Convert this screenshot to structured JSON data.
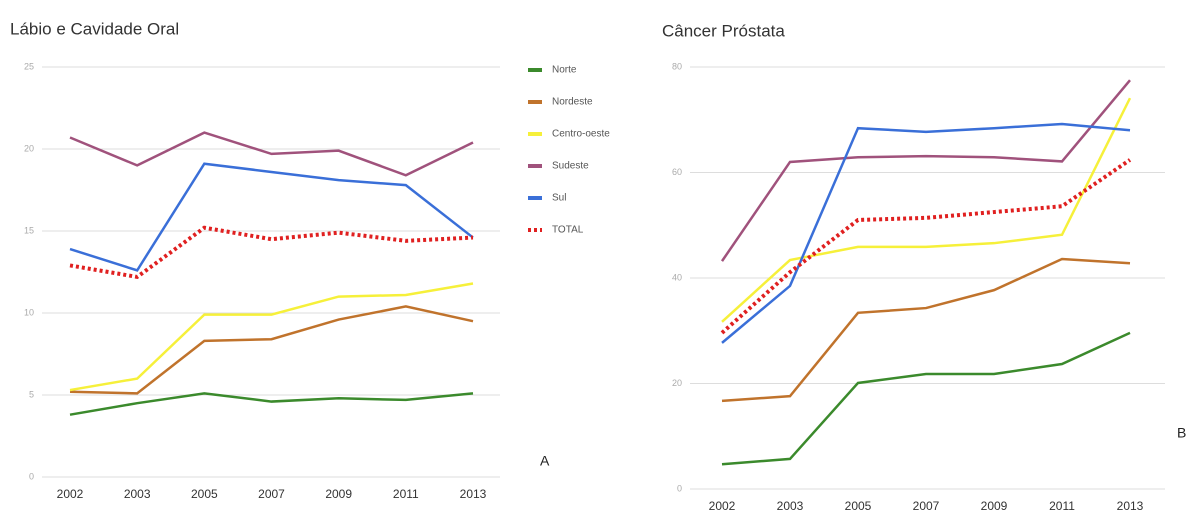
{
  "chart_data": [
    {
      "type": "line",
      "title": "Lábio e Cavidade Oral",
      "label": "A",
      "categories": [
        "2002",
        "2003",
        "2005",
        "2007",
        "2009",
        "2011",
        "2013"
      ],
      "ylim": [
        0,
        25
      ],
      "yticks": [
        0,
        5,
        10,
        15,
        20,
        25
      ],
      "grid": true,
      "legend": "right",
      "series": [
        {
          "name": "Norte",
          "color": "#3b8a2c",
          "values": [
            3.8,
            4.5,
            5.1,
            4.6,
            4.8,
            4.7,
            5.1
          ]
        },
        {
          "name": "Nordeste",
          "color": "#c0732c",
          "values": [
            5.2,
            5.1,
            8.3,
            8.4,
            9.6,
            10.4,
            9.5
          ]
        },
        {
          "name": "Centro-oeste",
          "color": "#f6f03a",
          "values": [
            5.3,
            6.0,
            9.9,
            9.9,
            11.0,
            11.1,
            11.8
          ]
        },
        {
          "name": "Sudeste",
          "color": "#a0527c",
          "values": [
            20.7,
            19.0,
            21.0,
            19.7,
            19.9,
            18.4,
            20.4
          ]
        },
        {
          "name": "Sul",
          "color": "#3a6fd8",
          "values": [
            13.9,
            12.6,
            19.1,
            18.6,
            18.1,
            17.8,
            14.6
          ]
        },
        {
          "name": "TOTAL",
          "color": "#e02020",
          "dash": "dotted",
          "values": [
            12.9,
            12.2,
            15.2,
            14.5,
            14.9,
            14.4,
            14.6
          ]
        }
      ]
    },
    {
      "type": "line",
      "title": "Câncer Próstata",
      "label": "B",
      "categories": [
        "2002",
        "2003",
        "2005",
        "2007",
        "2009",
        "2011",
        "2013"
      ],
      "ylim": [
        0,
        80
      ],
      "yticks": [
        0,
        20,
        40,
        60,
        80
      ],
      "grid": true,
      "series": [
        {
          "color": "#3b8a2c",
          "values": [
            4.7,
            5.7,
            20.1,
            21.8,
            21.8,
            23.7,
            29.6
          ]
        },
        {
          "color": "#c0732c",
          "values": [
            16.7,
            17.6,
            33.4,
            34.3,
            37.7,
            43.6,
            42.8
          ]
        },
        {
          "color": "#f6f03a",
          "values": [
            31.7,
            43.4,
            45.9,
            45.9,
            46.6,
            48.2,
            74.1
          ]
        },
        {
          "color": "#a0527c",
          "values": [
            43.2,
            62.0,
            62.9,
            63.1,
            62.9,
            62.1,
            77.5
          ]
        },
        {
          "color": "#3a6fd8",
          "values": [
            27.7,
            38.5,
            68.4,
            67.7,
            68.4,
            69.2,
            68.0
          ]
        },
        {
          "color": "#e02020",
          "dash": "dotted",
          "values": [
            29.6,
            41.1,
            51.0,
            51.4,
            52.5,
            53.6,
            62.4
          ]
        }
      ]
    }
  ]
}
